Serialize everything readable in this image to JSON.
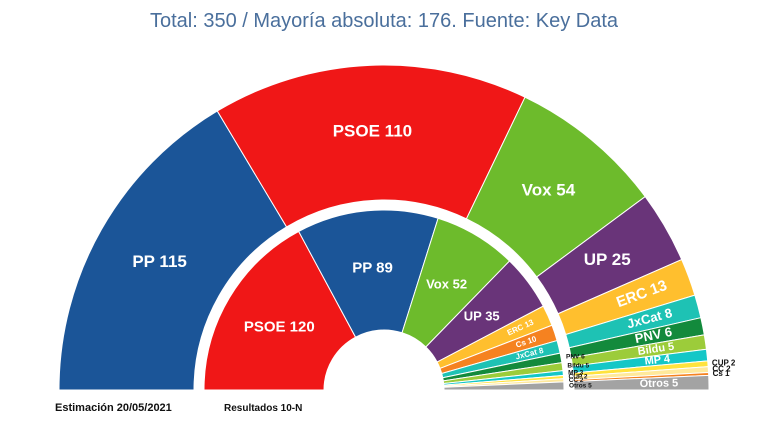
{
  "title": "Total: 350 / Mayoría absoluta: 176. Fuente: Key Data",
  "outer_caption": "Estimación 20/05/2021",
  "inner_caption": "Resultados 10-N",
  "chart_data": [
    {
      "type": "pie",
      "variant": "half-donut (hemicycle)",
      "name": "Estimación 20/05/2021",
      "total": 350,
      "slices": [
        {
          "party": "PP",
          "seats": 115,
          "label": "PP 115",
          "color": "#1b5598"
        },
        {
          "party": "PSOE",
          "seats": 110,
          "label": "PSOE 110",
          "color": "#f01717"
        },
        {
          "party": "Vox",
          "seats": 54,
          "label": "Vox 54",
          "color": "#6dbb2c"
        },
        {
          "party": "UP",
          "seats": 25,
          "label": "UP 25",
          "color": "#693479"
        },
        {
          "party": "ERC",
          "seats": 13,
          "label": "ERC 13",
          "color": "#ffbf2e"
        },
        {
          "party": "JxCat",
          "seats": 8,
          "label": "JxCat 8",
          "color": "#1ec2b4"
        },
        {
          "party": "PNV",
          "seats": 6,
          "label": "PNV 6",
          "color": "#138a3c"
        },
        {
          "party": "Bildu",
          "seats": 5,
          "label": "Bildu 5",
          "color": "#9ccc3a"
        },
        {
          "party": "MP",
          "seats": 4,
          "label": "MP 4",
          "color": "#14c7c7"
        },
        {
          "party": "CUP",
          "seats": 2,
          "label": "CUP 2",
          "color": "#ffe33d"
        },
        {
          "party": "CC",
          "seats": 2,
          "label": "CC 2",
          "color": "#ffe99b"
        },
        {
          "party": "Cs",
          "seats": 1,
          "label": "Cs 1",
          "color": "#f58220"
        },
        {
          "party": "Otros",
          "seats": 5,
          "label": "Otros 5",
          "color": "#a3a3a3"
        }
      ]
    },
    {
      "type": "pie",
      "variant": "half-donut (hemicycle)",
      "name": "Resultados 10-N",
      "total": 350,
      "slices": [
        {
          "party": "PSOE",
          "seats": 120,
          "label": "PSOE 120",
          "color": "#f01717"
        },
        {
          "party": "PP",
          "seats": 89,
          "label": "PP 89",
          "color": "#1b5598"
        },
        {
          "party": "Vox",
          "seats": 52,
          "label": "Vox 52",
          "color": "#6dbb2c"
        },
        {
          "party": "UP",
          "seats": 35,
          "label": "UP 35",
          "color": "#693479"
        },
        {
          "party": "ERC",
          "seats": 13,
          "label": "ERC 13",
          "color": "#ffbf2e"
        },
        {
          "party": "Cs",
          "seats": 10,
          "label": "Cs 10",
          "color": "#f58220"
        },
        {
          "party": "JxCat",
          "seats": 8,
          "label": "JxCat 8",
          "color": "#1ec2b4"
        },
        {
          "party": "PNV",
          "seats": 6,
          "label": "PNV 6",
          "color": "#138a3c"
        },
        {
          "party": "Bildu",
          "seats": 5,
          "label": "Bildu 5",
          "color": "#9ccc3a"
        },
        {
          "party": "MP",
          "seats": 3,
          "label": "MP 3",
          "color": "#14c7c7"
        },
        {
          "party": "CUP",
          "seats": 2,
          "label": "CUP 2",
          "color": "#ffe33d"
        },
        {
          "party": "CC",
          "seats": 2,
          "label": "CC 2",
          "color": "#ffe99b"
        },
        {
          "party": "Otros",
          "seats": 5,
          "label": "Otros 5",
          "color": "#a3a3a3"
        }
      ]
    }
  ]
}
